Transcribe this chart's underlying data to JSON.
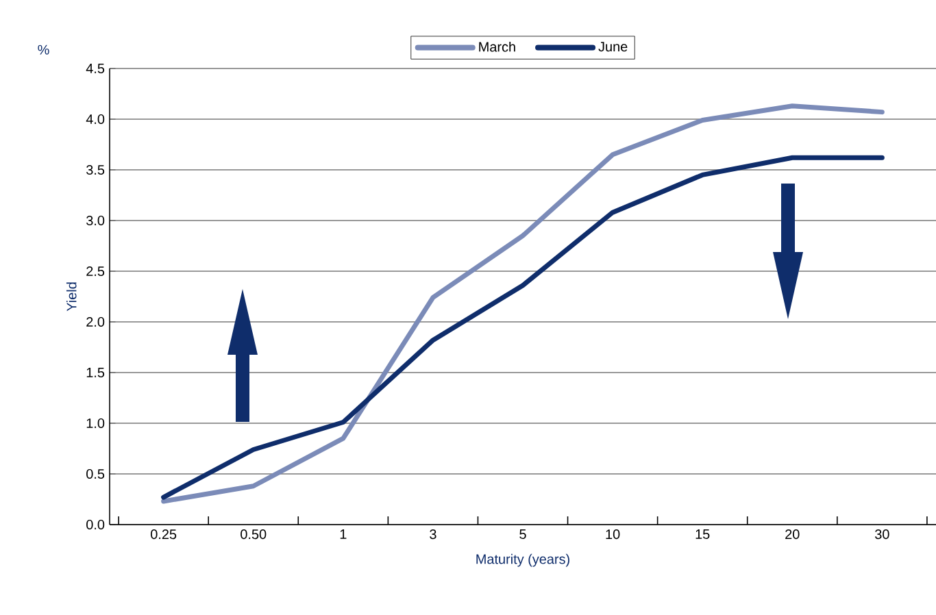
{
  "chart_data": {
    "type": "line",
    "xlabel": "Maturity (years)",
    "ylabel": "Yield",
    "annotations": [
      "%"
    ],
    "categories": [
      "0.25",
      "0.50",
      "1",
      "3",
      "5",
      "10",
      "15",
      "20",
      "30"
    ],
    "series": [
      {
        "name": "March",
        "color": "#7b8bb8",
        "values": [
          0.23,
          0.38,
          0.85,
          2.24,
          2.85,
          3.65,
          3.99,
          4.13,
          4.07
        ]
      },
      {
        "name": "June",
        "color": "#0f2d6b",
        "values": [
          0.27,
          0.74,
          1.01,
          1.82,
          2.36,
          3.08,
          3.45,
          3.62,
          3.62
        ]
      }
    ],
    "ylim": [
      0,
      4.5
    ],
    "yticks": [
      {
        "value": 0,
        "label": "0.0"
      },
      {
        "value": 0.5,
        "label": "0.5"
      },
      {
        "value": 1,
        "label": "1.0"
      },
      {
        "value": 1.5,
        "label": "1.5"
      },
      {
        "value": 2,
        "label": "2.0"
      },
      {
        "value": 2.5,
        "label": "2.5"
      },
      {
        "value": 3,
        "label": "3.0"
      },
      {
        "value": 3.5,
        "label": "3.5"
      },
      {
        "value": 4,
        "label": "4.0"
      },
      {
        "value": 4.5,
        "label": "4.5"
      }
    ],
    "grid": "y",
    "legend": "top",
    "marker": "none",
    "line_style": "solid"
  }
}
